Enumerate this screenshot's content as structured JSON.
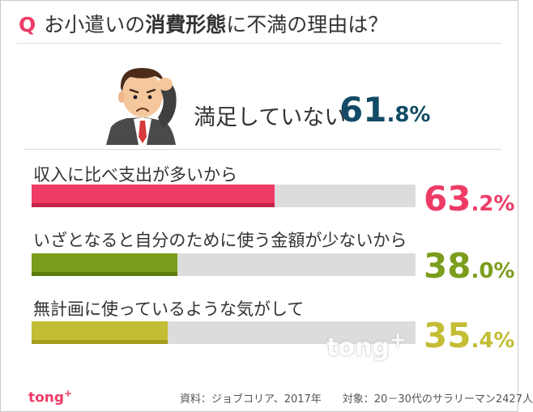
{
  "title": {
    "q": "Q",
    "prefix": "お小遣いの",
    "bold": "消費形態",
    "suffix": "に不満の理由は？"
  },
  "summary": {
    "label": "満足していない",
    "value_int": "61",
    "value_dec": ".8%",
    "color": "#134b66"
  },
  "chart_data": {
    "type": "bar",
    "orientation": "horizontal",
    "xlim": [
      0,
      100
    ],
    "categories": [
      "収入に比べ支出が多いから",
      "いざとなると自分のために使う金額が少ないから",
      "無計画に使っているような気がして"
    ],
    "values": [
      63.2,
      38.0,
      35.4
    ],
    "value_labels": [
      {
        "int": "63",
        "dec": ".2%"
      },
      {
        "int": "38",
        "dec": ".0%"
      },
      {
        "int": "35",
        "dec": ".4%"
      }
    ],
    "colors": [
      "#ee3c67",
      "#7a9d1c",
      "#c2bd34"
    ],
    "stripe_colors": [
      "#c82349",
      "#5c7d0c",
      "#a29e1c"
    ],
    "track_color": "#dcdcdc"
  },
  "footer": {
    "logo": "tong",
    "logo_sup": "+",
    "source": "資料：ジョブコリア、2017年　　対象：20－30代のサラリーマン2427人"
  },
  "watermark": {
    "text": "tong",
    "sup": "+"
  }
}
